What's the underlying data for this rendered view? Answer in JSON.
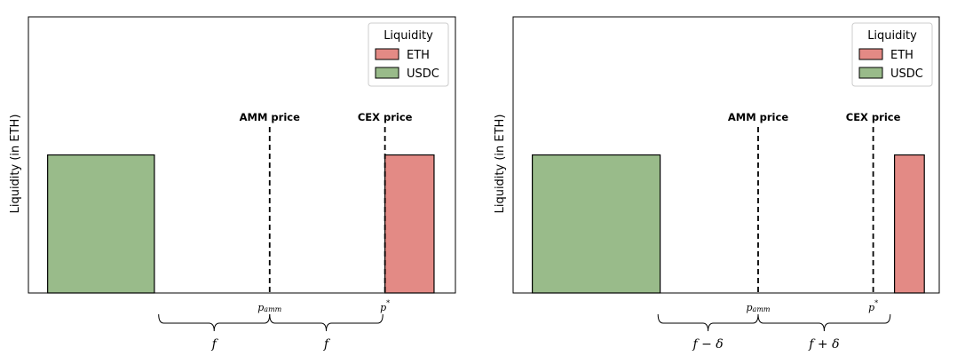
{
  "colors": {
    "eth": "#e38a85",
    "usdc": "#99bb8a",
    "edge": "#000000",
    "line": "#000000"
  },
  "chart_data": [
    {
      "type": "bar",
      "ylabel": "Liquidity (in ETH)",
      "grid": false,
      "legend": {
        "title": "Liquidity",
        "placement": "top-right",
        "entries": [
          {
            "label": "ETH",
            "color": "#e38a85"
          },
          {
            "label": "USDC",
            "color": "#99bb8a"
          }
        ]
      },
      "xlim": [
        0,
        100
      ],
      "ylim": [
        0,
        2
      ],
      "bars": [
        {
          "series": "USDC",
          "x_start": 4.5,
          "x_end": 29.5,
          "value": 1
        },
        {
          "series": "ETH",
          "x_start": 83.5,
          "x_end": 95,
          "value": 1
        }
      ],
      "vlines": [
        {
          "x": 56.5,
          "label": "AMM price",
          "tick": "p",
          "tick_sub": "amm"
        },
        {
          "x": 83.5,
          "label": "CEX price",
          "tick": "p",
          "tick_sup": "*"
        }
      ],
      "braces": [
        {
          "from": 30.5,
          "to": 56.5,
          "label": "f"
        },
        {
          "from": 56.5,
          "to": 83,
          "label": "f"
        }
      ]
    },
    {
      "type": "bar",
      "ylabel": "Liquidity (in ETH)",
      "grid": false,
      "legend": {
        "title": "Liquidity",
        "placement": "top-right",
        "entries": [
          {
            "label": "ETH",
            "color": "#e38a85"
          },
          {
            "label": "USDC",
            "color": "#99bb8a"
          }
        ]
      },
      "xlim": [
        0,
        100
      ],
      "ylim": [
        0,
        2
      ],
      "bars": [
        {
          "series": "USDC",
          "x_start": 4.5,
          "x_end": 34.5,
          "value": 1
        },
        {
          "series": "ETH",
          "x_start": 89.5,
          "x_end": 96.5,
          "value": 1
        }
      ],
      "vlines": [
        {
          "x": 57.5,
          "label": "AMM price",
          "tick": "p",
          "tick_sub": "amm"
        },
        {
          "x": 84.5,
          "label": "CEX price",
          "tick": "p",
          "tick_sup": "*"
        }
      ],
      "braces": [
        {
          "from": 34,
          "to": 57.5,
          "label": "f − δ"
        },
        {
          "from": 57.5,
          "to": 88.5,
          "label": "f + δ"
        }
      ]
    }
  ]
}
